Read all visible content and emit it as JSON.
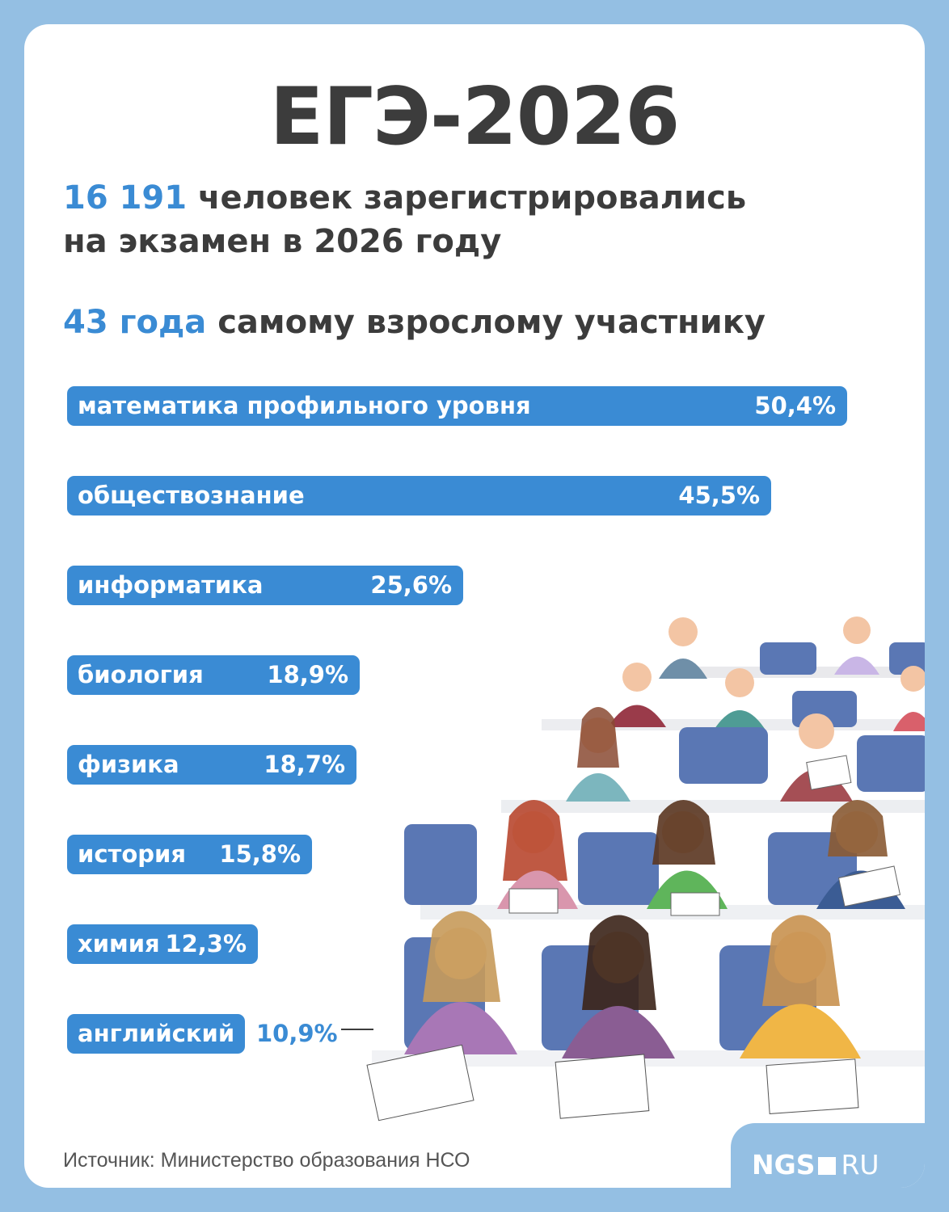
{
  "title": "ЕГЭ-2026",
  "stats": [
    {
      "highlight": "16 191",
      "text": " человек зарегистрировались",
      "line2": "на экзамен в 2026 году"
    },
    {
      "highlight": "43 года",
      "text": " самому взрослому участнику"
    }
  ],
  "chart_data": {
    "type": "bar",
    "orientation": "horizontal",
    "categories": [
      "математика профильного уровня",
      "обществознание",
      "информатика",
      "биология",
      "физика",
      "история",
      "химия",
      "английский"
    ],
    "values": [
      50.4,
      45.5,
      25.6,
      18.9,
      18.7,
      15.8,
      12.3,
      10.9
    ],
    "value_labels": [
      "50,4%",
      "45,5%",
      "25,6%",
      "18,9%",
      "18,7%",
      "15,8%",
      "12,3%",
      "10,9%"
    ],
    "color": "#3a8bd4"
  },
  "source": "Источник: Министерство образования НСО",
  "logo": {
    "left": "NGS",
    "right": "RU"
  }
}
